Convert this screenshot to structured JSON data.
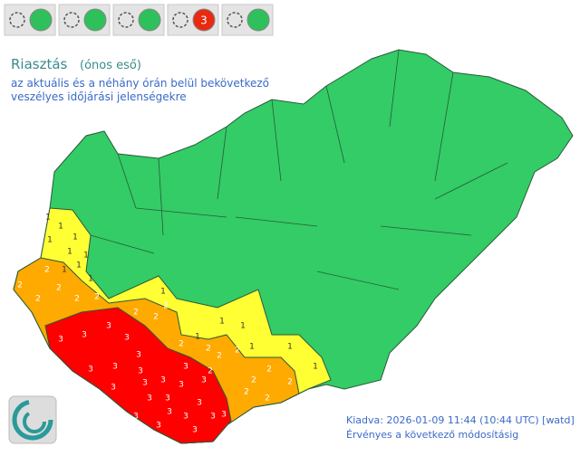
{
  "header": {
    "title": "Riasztás",
    "hazard": "(ónos eső)",
    "subtitle_lines": [
      "az aktuális és a néhány órán belül bekövetkező",
      "veszélyes időjárási jelenségekre"
    ]
  },
  "status_bar": {
    "colors": [
      "#2ec05a",
      "#2ec05a",
      "#2ec05a",
      "#e82a10",
      "#2ec05a"
    ],
    "active_level": 3
  },
  "map": {
    "level_colors": [
      "#33cc66",
      "#ffff33",
      "#ffaa00",
      "#ff0000"
    ],
    "levels": [
      1,
      1,
      1,
      1,
      1,
      1,
      1,
      1,
      1,
      1,
      1,
      1,
      1,
      1,
      1,
      1,
      2,
      2,
      2,
      2,
      2,
      2,
      2,
      2,
      2,
      2,
      2,
      2,
      2,
      2,
      2,
      2,
      2,
      2,
      2,
      3,
      3,
      3,
      3,
      3,
      3,
      3,
      3,
      3,
      3,
      3,
      3,
      3,
      3,
      3,
      3,
      3,
      3,
      3,
      3,
      3,
      3,
      3,
      3
    ]
  },
  "footer": {
    "issued": "Kiadva: 2026-01-09 11:44 (10:44 UTC) [watd]",
    "validity": "Érvényes a következő módosításig"
  }
}
